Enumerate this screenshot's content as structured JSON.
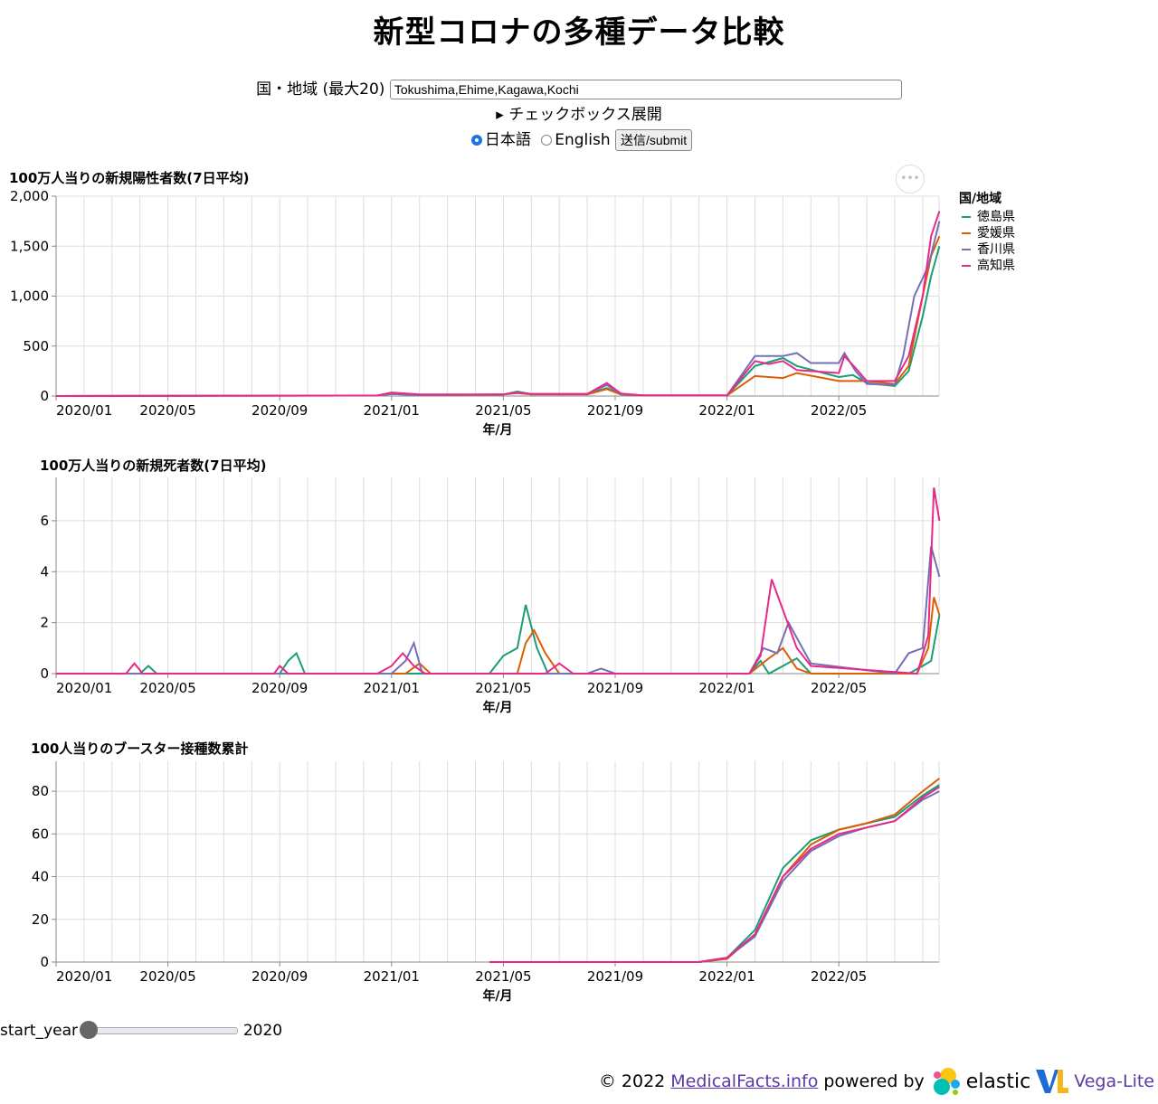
{
  "title": "新型コロナの多種データ比較",
  "controls": {
    "region_label": "国・地域 (最大20)",
    "region_value": "Tokushima,Ehime,Kagawa,Kochi",
    "checkbox_expand": "▸ チェックボックス展開",
    "lang_ja": "日本語",
    "lang_en": "English",
    "submit": "送信/submit",
    "menu": "•••"
  },
  "legend": {
    "title": "国/地域",
    "items": [
      {
        "name": "徳島県",
        "color": "#1b9e77"
      },
      {
        "name": "愛媛県",
        "color": "#d95f02"
      },
      {
        "name": "香川県",
        "color": "#7570b3"
      },
      {
        "name": "高知県",
        "color": "#e7298a"
      }
    ]
  },
  "slider": {
    "label": "start_year",
    "value": "2020",
    "fraction": 0
  },
  "footer": {
    "copyright": "© 2022",
    "link": "MedicalFacts.info",
    "powered": "powered by",
    "elastic": "elastic",
    "vega": "Vega-Lite"
  },
  "chart_data": [
    {
      "type": "line",
      "title": "100万人当りの新規陽性者数(7日平均)",
      "xlabel": "年/月",
      "ylim": [
        0,
        2000
      ],
      "yticks": [
        "0",
        "500",
        "1,000",
        "1,500",
        "2,000"
      ],
      "ytick_values": [
        0,
        500,
        1000,
        1500,
        2000
      ],
      "xticks": [
        "2020/01",
        "2020/05",
        "2020/09",
        "2021/01",
        "2021/05",
        "2021/09",
        "2022/01",
        "2022/05"
      ],
      "x_unit": "months since 2020/01",
      "series": [
        {
          "name": "徳島県",
          "points": [
            [
              0,
              0
            ],
            [
              11.5,
              5
            ],
            [
              12,
              25
            ],
            [
              13,
              10
            ],
            [
              16,
              15
            ],
            [
              16.5,
              45
            ],
            [
              17,
              20
            ],
            [
              19,
              20
            ],
            [
              19.7,
              80
            ],
            [
              20.2,
              20
            ],
            [
              21,
              5
            ],
            [
              24,
              5
            ],
            [
              25,
              300
            ],
            [
              26,
              380
            ],
            [
              26.5,
              300
            ],
            [
              28,
              190
            ],
            [
              28.5,
              210
            ],
            [
              29,
              130
            ],
            [
              30,
              100
            ],
            [
              30.5,
              250
            ],
            [
              31,
              800
            ],
            [
              31.3,
              1200
            ],
            [
              31.6,
              1500
            ]
          ]
        },
        {
          "name": "愛媛県",
          "points": [
            [
              0,
              0
            ],
            [
              11.5,
              5
            ],
            [
              12,
              20
            ],
            [
              13,
              10
            ],
            [
              16,
              15
            ],
            [
              16.5,
              30
            ],
            [
              17,
              15
            ],
            [
              19,
              15
            ],
            [
              19.7,
              70
            ],
            [
              20.2,
              15
            ],
            [
              21,
              5
            ],
            [
              24,
              5
            ],
            [
              25,
              200
            ],
            [
              26,
              180
            ],
            [
              26.5,
              230
            ],
            [
              28,
              150
            ],
            [
              29,
              150
            ],
            [
              30,
              120
            ],
            [
              30.5,
              300
            ],
            [
              31,
              1000
            ],
            [
              31.3,
              1400
            ],
            [
              31.6,
              1600
            ]
          ]
        },
        {
          "name": "香川県",
          "points": [
            [
              0,
              0
            ],
            [
              11.5,
              5
            ],
            [
              12,
              20
            ],
            [
              13,
              10
            ],
            [
              16,
              15
            ],
            [
              16.5,
              35
            ],
            [
              17,
              20
            ],
            [
              19,
              20
            ],
            [
              19.7,
              110
            ],
            [
              20.2,
              20
            ],
            [
              21,
              5
            ],
            [
              24,
              5
            ],
            [
              25,
              400
            ],
            [
              26,
              400
            ],
            [
              26.5,
              430
            ],
            [
              27,
              330
            ],
            [
              28,
              330
            ],
            [
              28.2,
              430
            ],
            [
              28.6,
              250
            ],
            [
              29,
              120
            ],
            [
              30,
              110
            ],
            [
              30.3,
              400
            ],
            [
              30.7,
              1000
            ],
            [
              31.2,
              1300
            ],
            [
              31.6,
              1750
            ]
          ]
        },
        {
          "name": "高知県",
          "points": [
            [
              0,
              0
            ],
            [
              11.5,
              5
            ],
            [
              12,
              35
            ],
            [
              13,
              15
            ],
            [
              16,
              15
            ],
            [
              16.5,
              35
            ],
            [
              17,
              20
            ],
            [
              19,
              20
            ],
            [
              19.7,
              130
            ],
            [
              20.2,
              25
            ],
            [
              21,
              5
            ],
            [
              24,
              5
            ],
            [
              25,
              350
            ],
            [
              25.5,
              320
            ],
            [
              26,
              350
            ],
            [
              26.5,
              260
            ],
            [
              28,
              230
            ],
            [
              28.2,
              400
            ],
            [
              28.6,
              280
            ],
            [
              29,
              150
            ],
            [
              30,
              150
            ],
            [
              30.5,
              400
            ],
            [
              31,
              1000
            ],
            [
              31.3,
              1600
            ],
            [
              31.6,
              1850
            ]
          ]
        }
      ]
    },
    {
      "type": "line",
      "title": "100万人当りの新規死者数(7日平均)",
      "xlabel": "年/月",
      "ylim": [
        0,
        7.7
      ],
      "yticks": [
        "0",
        "2",
        "4",
        "6"
      ],
      "ytick_values": [
        0,
        2,
        4,
        6
      ],
      "xticks": [
        "2020/01",
        "2020/05",
        "2020/09",
        "2021/01",
        "2021/05",
        "2021/09",
        "2022/01",
        "2022/05"
      ],
      "series": [
        {
          "name": "徳島県",
          "points": [
            [
              0,
              0
            ],
            [
              3,
              0
            ],
            [
              3.3,
              0.3
            ],
            [
              3.6,
              0
            ],
            [
              8,
              0
            ],
            [
              8.3,
              0.5
            ],
            [
              8.6,
              0.8
            ],
            [
              8.9,
              0
            ],
            [
              15.5,
              0
            ],
            [
              16,
              0.7
            ],
            [
              16.5,
              1
            ],
            [
              16.8,
              2.7
            ],
            [
              17.2,
              1
            ],
            [
              17.6,
              0
            ],
            [
              24.8,
              0
            ],
            [
              25.2,
              0.5
            ],
            [
              25.5,
              0
            ],
            [
              26.5,
              0.6
            ],
            [
              27,
              0
            ],
            [
              30.5,
              0
            ],
            [
              31,
              0.3
            ],
            [
              31.3,
              0.5
            ],
            [
              31.6,
              2.3
            ]
          ]
        },
        {
          "name": "愛媛県",
          "points": [
            [
              0,
              0
            ],
            [
              12.5,
              0
            ],
            [
              13,
              0.4
            ],
            [
              13.4,
              0
            ],
            [
              16.5,
              0
            ],
            [
              16.8,
              1.2
            ],
            [
              17.1,
              1.7
            ],
            [
              17.5,
              0.8
            ],
            [
              18,
              0
            ],
            [
              24.8,
              0
            ],
            [
              25.5,
              0.6
            ],
            [
              26,
              1
            ],
            [
              26.5,
              0.2
            ],
            [
              27,
              0
            ],
            [
              30.8,
              0
            ],
            [
              31.2,
              1
            ],
            [
              31.4,
              3
            ],
            [
              31.6,
              2.3
            ]
          ]
        },
        {
          "name": "香川県",
          "points": [
            [
              0,
              0
            ],
            [
              12,
              0
            ],
            [
              12.5,
              0.5
            ],
            [
              12.8,
              1.2
            ],
            [
              13.1,
              0
            ],
            [
              19,
              0
            ],
            [
              19.5,
              0.2
            ],
            [
              20,
              0
            ],
            [
              24.8,
              0
            ],
            [
              25.3,
              1
            ],
            [
              25.8,
              0.8
            ],
            [
              26.2,
              2
            ],
            [
              26.6,
              1.2
            ],
            [
              27,
              0.4
            ],
            [
              30,
              0
            ],
            [
              30.5,
              0.8
            ],
            [
              31,
              1
            ],
            [
              31.3,
              5
            ],
            [
              31.6,
              3.8
            ]
          ]
        },
        {
          "name": "高知県",
          "points": [
            [
              0,
              0
            ],
            [
              2.5,
              0
            ],
            [
              2.8,
              0.4
            ],
            [
              3.1,
              0
            ],
            [
              7.8,
              0
            ],
            [
              8,
              0.3
            ],
            [
              8.3,
              0
            ],
            [
              11.5,
              0
            ],
            [
              12,
              0.3
            ],
            [
              12.4,
              0.8
            ],
            [
              12.8,
              0.3
            ],
            [
              13.2,
              0
            ],
            [
              17.5,
              0
            ],
            [
              18,
              0.4
            ],
            [
              18.5,
              0
            ],
            [
              24.8,
              0
            ],
            [
              25.2,
              0.7
            ],
            [
              25.6,
              3.7
            ],
            [
              26,
              2.5
            ],
            [
              26.5,
              1
            ],
            [
              27,
              0.3
            ],
            [
              30.8,
              0
            ],
            [
              31.2,
              1.5
            ],
            [
              31.4,
              7.3
            ],
            [
              31.6,
              6
            ]
          ]
        }
      ]
    },
    {
      "type": "line",
      "title": "100人当りのブースター接種数累計",
      "xlabel": "年/月",
      "ylim": [
        0,
        94
      ],
      "yticks": [
        "0",
        "20",
        "40",
        "60",
        "80"
      ],
      "ytick_values": [
        0,
        20,
        40,
        60,
        80
      ],
      "xticks": [
        "2020/01",
        "2020/05",
        "2020/09",
        "2021/01",
        "2021/05",
        "2021/09",
        "2022/01",
        "2022/05"
      ],
      "series": [
        {
          "name": "徳島県",
          "points": [
            [
              15.5,
              0
            ],
            [
              23,
              0
            ],
            [
              24,
              2
            ],
            [
              25,
              15
            ],
            [
              26,
              44
            ],
            [
              27,
              57
            ],
            [
              28,
              62
            ],
            [
              29,
              65
            ],
            [
              30,
              68
            ],
            [
              31,
              78
            ],
            [
              31.6,
              83
            ]
          ]
        },
        {
          "name": "愛媛県",
          "points": [
            [
              15.5,
              0
            ],
            [
              23,
              0
            ],
            [
              24,
              1.5
            ],
            [
              25,
              13
            ],
            [
              26,
              40
            ],
            [
              27,
              55
            ],
            [
              28,
              62
            ],
            [
              29,
              65
            ],
            [
              30,
              69
            ],
            [
              31,
              80
            ],
            [
              31.6,
              86
            ]
          ]
        },
        {
          "name": "香川県",
          "points": [
            [
              15.5,
              0
            ],
            [
              23,
              0
            ],
            [
              24,
              2
            ],
            [
              25,
              12
            ],
            [
              26,
              38
            ],
            [
              27,
              52
            ],
            [
              28,
              59
            ],
            [
              29,
              63
            ],
            [
              30,
              66
            ],
            [
              31,
              76
            ],
            [
              31.6,
              80
            ]
          ]
        },
        {
          "name": "高知県",
          "points": [
            [
              15.5,
              0
            ],
            [
              23,
              0
            ],
            [
              24,
              2
            ],
            [
              25,
              13
            ],
            [
              26,
              40
            ],
            [
              27,
              53
            ],
            [
              28,
              60
            ],
            [
              29,
              63
            ],
            [
              30,
              66
            ],
            [
              31,
              77
            ],
            [
              31.6,
              82
            ]
          ]
        }
      ]
    }
  ]
}
